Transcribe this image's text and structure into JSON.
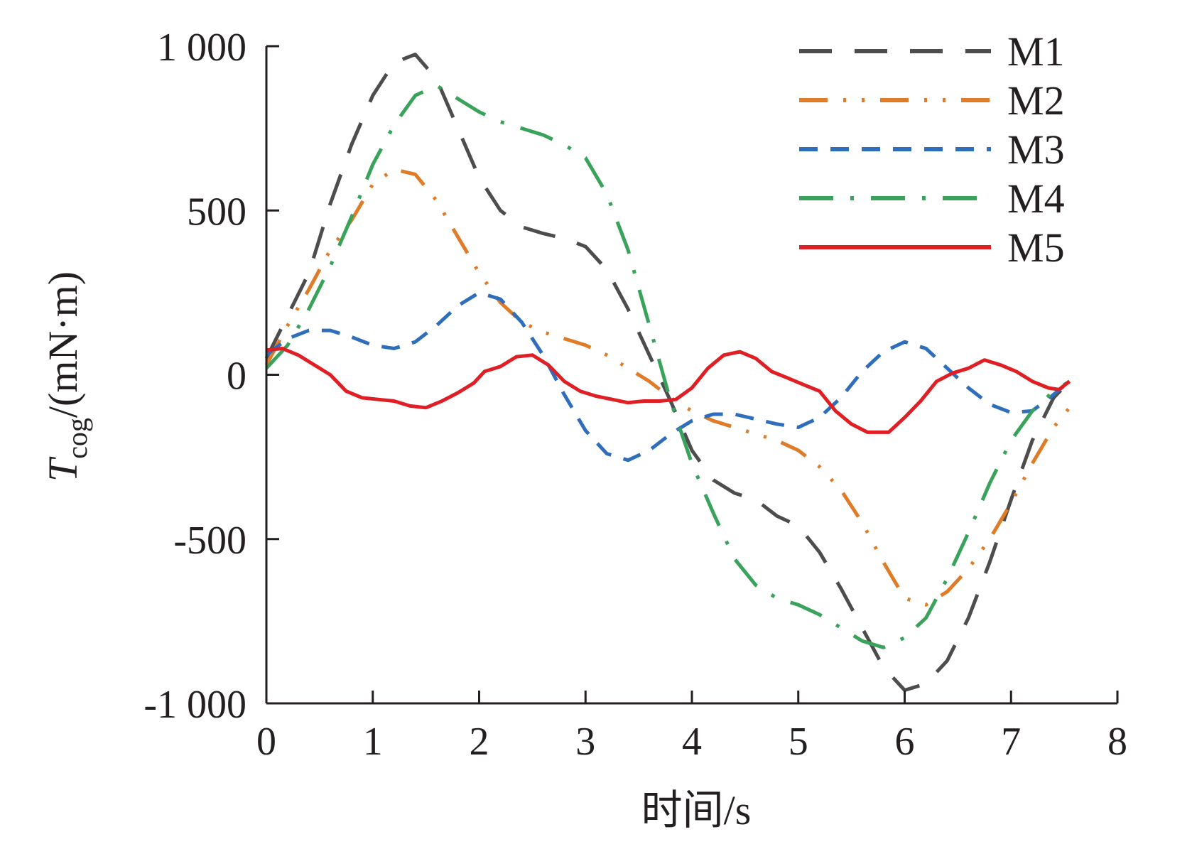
{
  "chart_data": {
    "type": "line",
    "xlabel": "时间/s",
    "ylabel_main": "T",
    "ylabel_sub": "cog",
    "ylabel_unit": "/(mN·m)",
    "xlim": [
      0,
      8
    ],
    "ylim": [
      -1000,
      1000
    ],
    "x_ticks": [
      0,
      1,
      2,
      3,
      4,
      5,
      6,
      7,
      8
    ],
    "x_tick_labels": [
      "0",
      "1",
      "2",
      "3",
      "4",
      "5",
      "6",
      "7",
      "8"
    ],
    "y_ticks": [
      1000,
      500,
      0,
      -500,
      -1000
    ],
    "y_tick_labels": [
      "1 000",
      "500",
      "0",
      "-500",
      "-1 000"
    ],
    "grid": false,
    "legend_position": "top-right",
    "series": [
      {
        "name": "M1",
        "color": "#4d4d4d",
        "dash": "dash",
        "x": [
          0,
          0.2,
          0.4,
          0.6,
          0.8,
          1.0,
          1.2,
          1.4,
          1.6,
          1.8,
          2.0,
          2.2,
          2.4,
          2.6,
          2.8,
          3.0,
          3.2,
          3.4,
          3.6,
          3.8,
          4.0,
          4.2,
          4.4,
          4.6,
          4.8,
          5.0,
          5.2,
          5.4,
          5.6,
          5.8,
          6.0,
          6.2,
          6.4,
          6.6,
          6.8,
          7.0,
          7.2,
          7.4,
          7.55
        ],
        "y": [
          50,
          180,
          310,
          520,
          700,
          850,
          950,
          975,
          900,
          750,
          600,
          500,
          450,
          430,
          415,
          390,
          320,
          200,
          60,
          -80,
          -230,
          -320,
          -360,
          -380,
          -430,
          -460,
          -540,
          -650,
          -770,
          -890,
          -960,
          -940,
          -870,
          -740,
          -570,
          -380,
          -200,
          -70,
          -20
        ]
      },
      {
        "name": "M2",
        "color": "#e07b28",
        "dash": "dashdotdot",
        "x": [
          0,
          0.2,
          0.4,
          0.6,
          0.8,
          1.0,
          1.2,
          1.4,
          1.6,
          1.8,
          2.0,
          2.2,
          2.4,
          2.6,
          2.8,
          3.0,
          3.2,
          3.4,
          3.6,
          3.8,
          4.0,
          4.2,
          4.4,
          4.6,
          4.8,
          5.0,
          5.2,
          5.4,
          5.6,
          5.8,
          6.0,
          6.2,
          6.4,
          6.6,
          6.8,
          7.0,
          7.2,
          7.4,
          7.55
        ],
        "y": [
          30,
          150,
          260,
          380,
          470,
          580,
          625,
          610,
          530,
          420,
          310,
          220,
          160,
          130,
          110,
          90,
          60,
          20,
          -20,
          -70,
          -110,
          -140,
          -160,
          -180,
          -200,
          -230,
          -280,
          -350,
          -450,
          -570,
          -680,
          -700,
          -660,
          -590,
          -500,
          -390,
          -270,
          -160,
          -100
        ]
      },
      {
        "name": "M3",
        "color": "#2f6ebd",
        "dash": "shortdash",
        "x": [
          0,
          0.2,
          0.4,
          0.6,
          0.8,
          1.0,
          1.2,
          1.4,
          1.6,
          1.8,
          2.0,
          2.2,
          2.4,
          2.6,
          2.8,
          3.0,
          3.2,
          3.4,
          3.6,
          3.8,
          4.0,
          4.2,
          4.4,
          4.6,
          4.8,
          5.0,
          5.2,
          5.4,
          5.6,
          5.8,
          6.0,
          6.2,
          6.4,
          6.6,
          6.8,
          7.0,
          7.2,
          7.4,
          7.55
        ],
        "y": [
          60,
          110,
          135,
          135,
          115,
          90,
          80,
          100,
          150,
          210,
          250,
          230,
          160,
          60,
          -60,
          -170,
          -240,
          -260,
          -230,
          -180,
          -140,
          -120,
          -120,
          -135,
          -150,
          -160,
          -130,
          -70,
          10,
          70,
          100,
          80,
          20,
          -40,
          -90,
          -115,
          -110,
          -60,
          -20
        ]
      },
      {
        "name": "M4",
        "color": "#3aa35b",
        "dash": "dashdot",
        "x": [
          0,
          0.2,
          0.4,
          0.6,
          0.8,
          1.0,
          1.2,
          1.4,
          1.6,
          1.8,
          2.0,
          2.2,
          2.4,
          2.6,
          2.8,
          3.0,
          3.2,
          3.4,
          3.6,
          3.8,
          4.0,
          4.2,
          4.4,
          4.6,
          4.8,
          5.0,
          5.2,
          5.4,
          5.6,
          5.8,
          6.0,
          6.2,
          6.4,
          6.6,
          6.8,
          7.0,
          7.2,
          7.4,
          7.55
        ],
        "y": [
          20,
          90,
          200,
          330,
          480,
          640,
          760,
          850,
          880,
          840,
          800,
          770,
          750,
          730,
          700,
          660,
          550,
          380,
          150,
          -80,
          -270,
          -420,
          -560,
          -640,
          -680,
          -700,
          -730,
          -770,
          -810,
          -830,
          -800,
          -740,
          -620,
          -480,
          -330,
          -200,
          -110,
          -50,
          -20
        ]
      },
      {
        "name": "M5",
        "color": "#e01f25",
        "dash": "solid",
        "x": [
          0,
          0.15,
          0.3,
          0.45,
          0.6,
          0.75,
          0.9,
          1.05,
          1.2,
          1.35,
          1.5,
          1.65,
          1.8,
          1.95,
          2.05,
          2.2,
          2.35,
          2.5,
          2.65,
          2.8,
          2.95,
          3.1,
          3.25,
          3.4,
          3.55,
          3.7,
          3.85,
          4.0,
          4.15,
          4.3,
          4.45,
          4.6,
          4.75,
          4.9,
          5.05,
          5.2,
          5.35,
          5.5,
          5.65,
          5.85,
          6.0,
          6.15,
          6.3,
          6.45,
          6.6,
          6.75,
          6.9,
          7.05,
          7.2,
          7.35,
          7.45,
          7.55
        ],
        "y": [
          75,
          80,
          60,
          30,
          0,
          -50,
          -70,
          -75,
          -80,
          -95,
          -100,
          -80,
          -55,
          -25,
          10,
          25,
          55,
          60,
          30,
          -20,
          -50,
          -65,
          -75,
          -85,
          -80,
          -80,
          -75,
          -40,
          20,
          60,
          70,
          50,
          10,
          -10,
          -30,
          -50,
          -110,
          -150,
          -175,
          -175,
          -130,
          -80,
          -20,
          5,
          20,
          45,
          30,
          10,
          -20,
          -40,
          -45,
          -20
        ]
      }
    ]
  }
}
